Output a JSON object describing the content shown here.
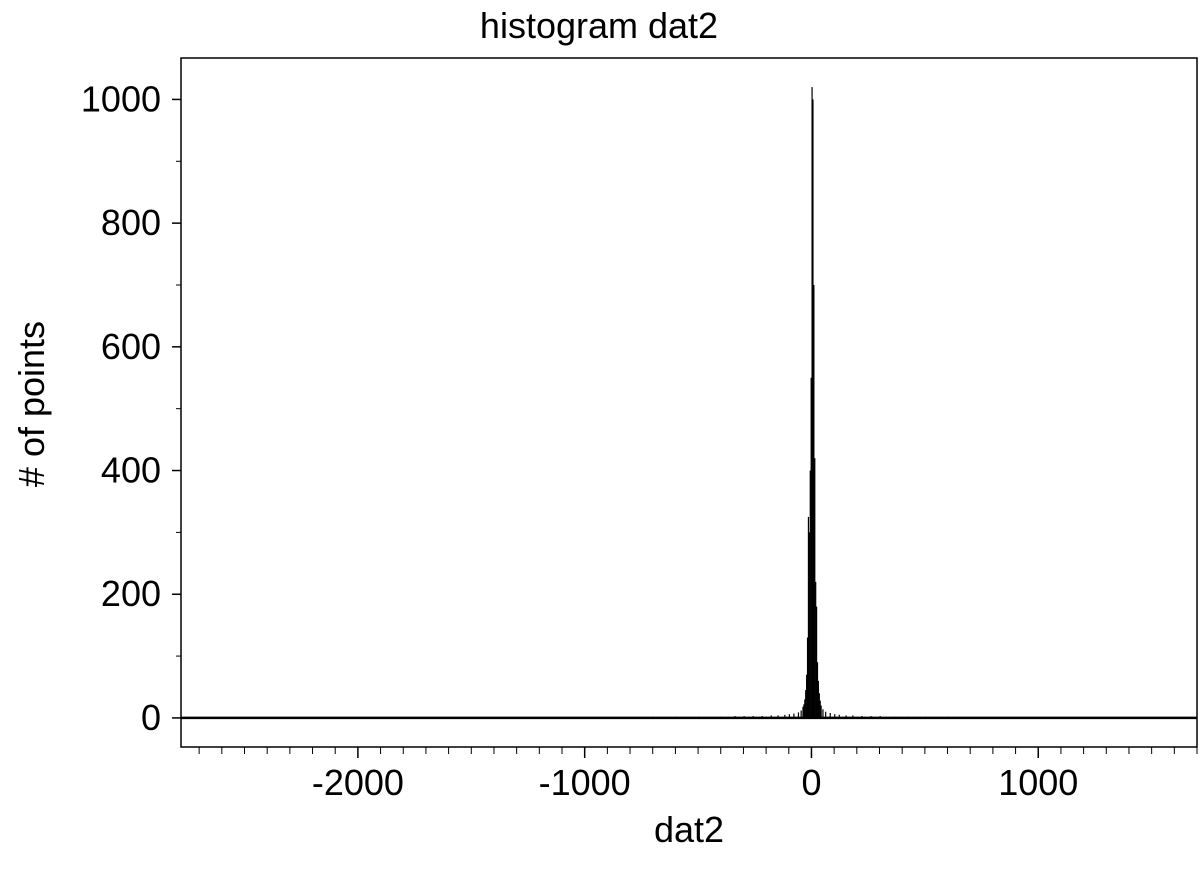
{
  "chart_data": {
    "type": "bar",
    "title": "histogram dat2",
    "xlabel": "dat2",
    "ylabel": "# of points",
    "xlim": [
      -2780,
      1700
    ],
    "ylim": [
      -47,
      1067
    ],
    "x_ticks": [
      -2000,
      -1000,
      0,
      1000
    ],
    "x_tick_labels": [
      "-2000",
      "-1000",
      "0",
      "1000"
    ],
    "y_ticks": [
      0,
      200,
      400,
      600,
      800,
      1000
    ],
    "y_tick_labels": [
      "0",
      "200",
      "400",
      "600",
      "800",
      "1000"
    ],
    "bin_width": 4,
    "series": [
      {
        "bins": [
          [
            -2760,
            1
          ],
          [
            -2700,
            1
          ],
          [
            -2600,
            1
          ],
          [
            -2500,
            1
          ],
          [
            -2400,
            1
          ],
          [
            -2300,
            1
          ],
          [
            -2200,
            1
          ],
          [
            -2100,
            1
          ],
          [
            -2000,
            1
          ],
          [
            -1900,
            1
          ],
          [
            -1800,
            1
          ],
          [
            -1700,
            1
          ],
          [
            -1600,
            1
          ],
          [
            -1500,
            1
          ],
          [
            -1400,
            1
          ],
          [
            -1300,
            1
          ],
          [
            -1200,
            1
          ],
          [
            -1100,
            1
          ],
          [
            -1000,
            1
          ],
          [
            -900,
            1
          ],
          [
            -800,
            1
          ],
          [
            -700,
            2
          ],
          [
            -600,
            2
          ],
          [
            -500,
            2
          ],
          [
            -400,
            2
          ],
          [
            -340,
            3
          ],
          [
            -300,
            3
          ],
          [
            -260,
            3
          ],
          [
            -220,
            3
          ],
          [
            -180,
            4
          ],
          [
            -150,
            4
          ],
          [
            -120,
            5
          ],
          [
            -100,
            6
          ],
          [
            -80,
            7
          ],
          [
            -60,
            9
          ],
          [
            -48,
            12
          ],
          [
            -40,
            18
          ],
          [
            -36,
            22
          ],
          [
            -32,
            30
          ],
          [
            -28,
            45
          ],
          [
            -24,
            70
          ],
          [
            -20,
            130
          ],
          [
            -16,
            325
          ],
          [
            -12,
            300
          ],
          [
            -8,
            400
          ],
          [
            -4,
            550
          ],
          [
            0,
            1020
          ],
          [
            4,
            1000
          ],
          [
            8,
            700
          ],
          [
            12,
            420
          ],
          [
            16,
            220
          ],
          [
            20,
            180
          ],
          [
            24,
            90
          ],
          [
            28,
            60
          ],
          [
            32,
            40
          ],
          [
            36,
            28
          ],
          [
            40,
            20
          ],
          [
            48,
            14
          ],
          [
            60,
            10
          ],
          [
            80,
            8
          ],
          [
            100,
            6
          ],
          [
            120,
            5
          ],
          [
            150,
            4
          ],
          [
            180,
            4
          ],
          [
            220,
            3
          ],
          [
            260,
            3
          ],
          [
            300,
            3
          ],
          [
            360,
            2
          ],
          [
            420,
            2
          ],
          [
            500,
            2
          ],
          [
            600,
            2
          ],
          [
            700,
            1
          ],
          [
            800,
            1
          ],
          [
            900,
            1
          ],
          [
            1000,
            1
          ],
          [
            1100,
            1
          ],
          [
            1200,
            1
          ],
          [
            1300,
            1
          ],
          [
            1400,
            1
          ],
          [
            1500,
            1
          ],
          [
            1600,
            1
          ],
          [
            1690,
            1
          ]
        ]
      }
    ],
    "bar_color": "#000000",
    "grid": false,
    "zero_line": true,
    "minor_x_tick_step": 100,
    "minor_y_tick_step": 100
  }
}
